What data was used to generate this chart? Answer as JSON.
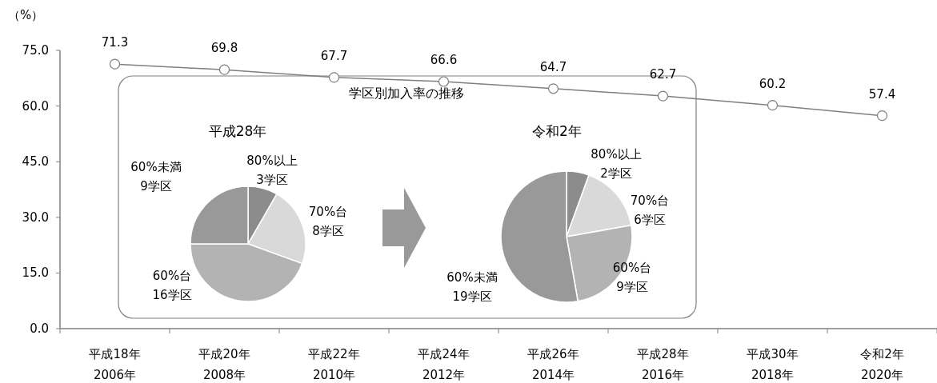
{
  "chart_data": [
    {
      "type": "line",
      "ylabel": "（%）",
      "categories": [
        "平成18年\n2006年",
        "平成20年\n2008年",
        "平成22年\n2010年",
        "平成24年\n2012年",
        "平成26年\n2014年",
        "平成28年\n2016年",
        "平成30年\n2018年",
        "令和2年\n2020年"
      ],
      "series": [
        {
          "color": "#7f7f7f",
          "values": [
            71.3,
            69.8,
            67.7,
            66.6,
            64.7,
            62.7,
            60.2,
            57.4
          ]
        }
      ],
      "ylim": [
        0,
        75
      ],
      "yticks": [
        {
          "value": 0,
          "label": "0.0"
        },
        {
          "value": 15,
          "label": "15.0"
        },
        {
          "value": 30,
          "label": "30.0"
        },
        {
          "value": 45,
          "label": "45.0"
        },
        {
          "value": 60,
          "label": "60.0"
        },
        {
          "value": 75,
          "label": "75.0"
        }
      ],
      "data_labels": true,
      "marker": "circle",
      "grid": false
    },
    {
      "type": "pie",
      "title": "平成28年",
      "annotations": [
        "学区別加入率の推移"
      ],
      "categories": [
        "80%以上",
        "70%台",
        "60%台",
        "60%未満"
      ],
      "values": [
        3,
        8,
        16,
        9
      ],
      "value_labels": [
        "3学区",
        "8学区",
        "16学区",
        "9学区"
      ],
      "colors": [
        "#8c8c8c",
        "#d9d9d9",
        "#b3b3b3",
        "#999999"
      ]
    },
    {
      "type": "pie",
      "title": "令和2年",
      "categories": [
        "80%以上",
        "70%台",
        "60%台",
        "60%未満"
      ],
      "values": [
        2,
        6,
        9,
        19
      ],
      "value_labels": [
        "2学区",
        "6学区",
        "9学区",
        "19学区"
      ],
      "colors": [
        "#8c8c8c",
        "#d9d9d9",
        "#b3b3b3",
        "#999999"
      ]
    }
  ]
}
